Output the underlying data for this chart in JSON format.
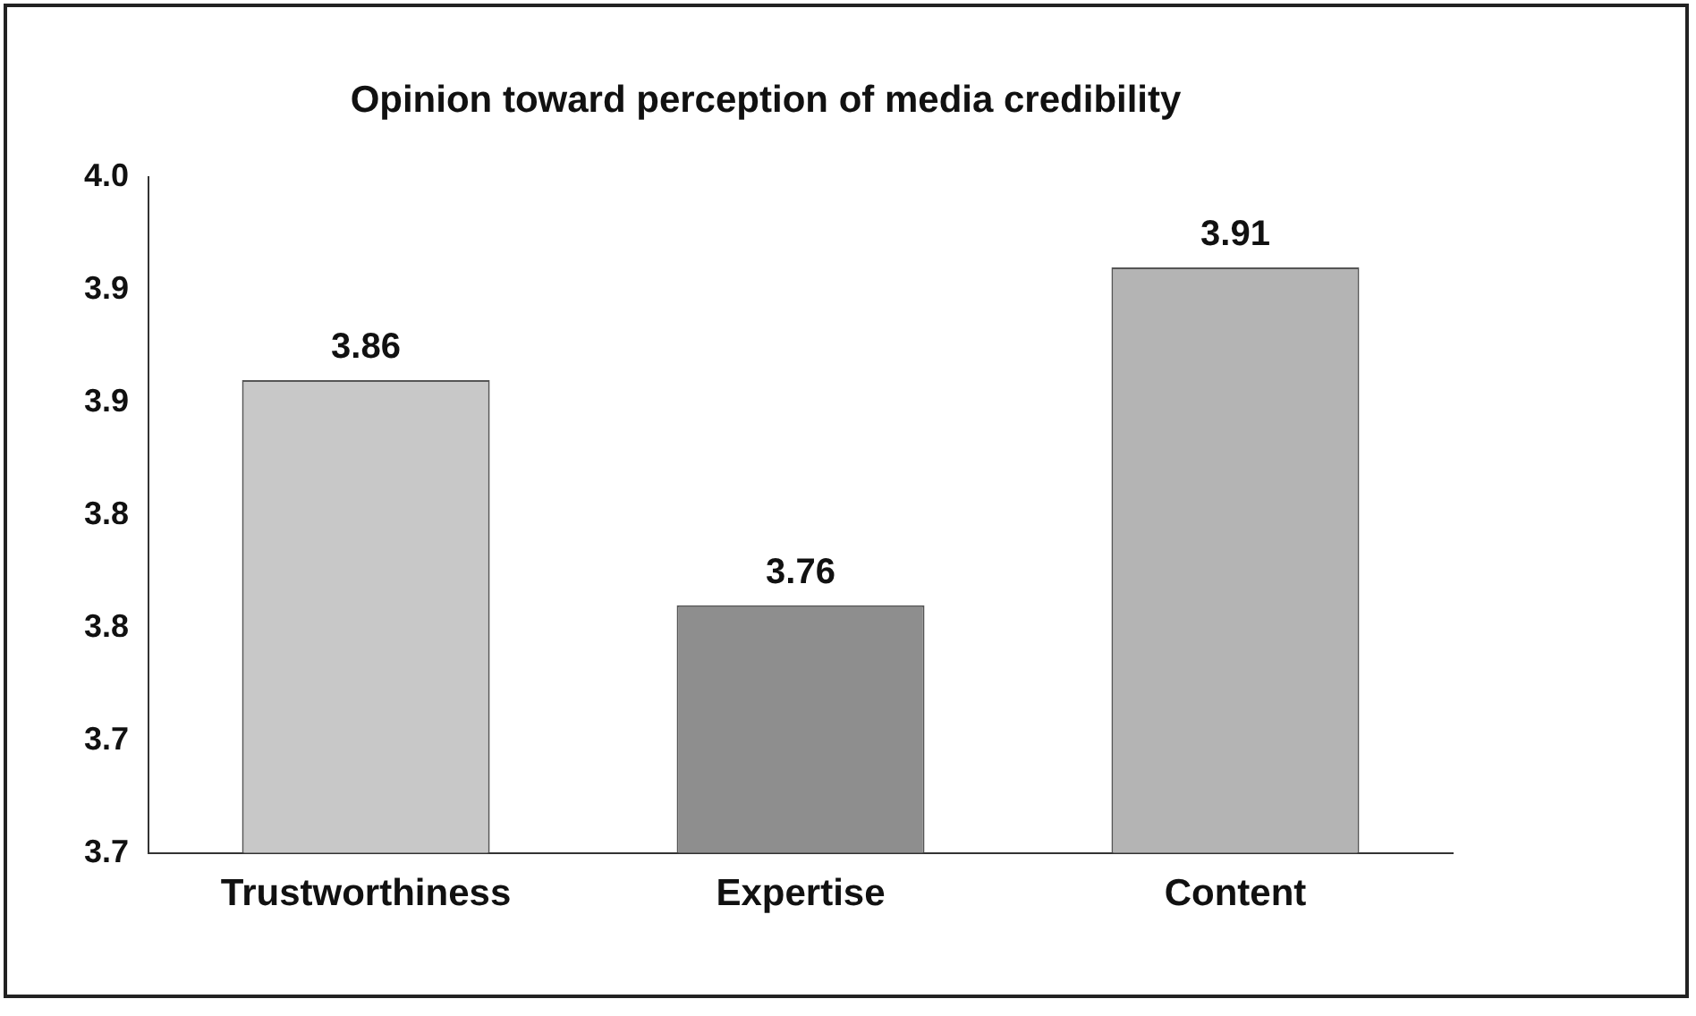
{
  "chart_data": {
    "type": "bar",
    "title": "Opinion toward perception of media credibility",
    "categories": [
      "Trustworthiness",
      "Expertise",
      "Content"
    ],
    "values": [
      3.86,
      3.76,
      3.91
    ],
    "colors": [
      "#c8c8c8",
      "#8e8e8e",
      "#b4b4b4"
    ],
    "ylim": [
      3.65,
      3.95
    ],
    "yticks": [
      {
        "value": 3.65,
        "label": "3.7"
      },
      {
        "value": 3.7,
        "label": "3.7"
      },
      {
        "value": 3.75,
        "label": "3.8"
      },
      {
        "value": 3.8,
        "label": "3.8"
      },
      {
        "value": 3.85,
        "label": "3.9"
      },
      {
        "value": 3.9,
        "label": "3.9"
      },
      {
        "value": 3.95,
        "label": "4.0"
      }
    ],
    "data_labels": true,
    "grid": false,
    "legend": false
  }
}
